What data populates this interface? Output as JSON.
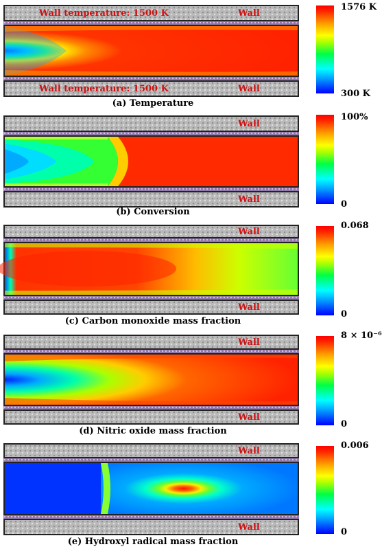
{
  "panels": [
    {
      "id": "temperature",
      "caption": "(a) Temperature",
      "top_wall_label": "Wall temperature: 1500 K",
      "top_wall_right": "Wall",
      "bottom_wall_label": "Wall temperature: 1500 K",
      "bottom_wall_right": "Wall",
      "colorbar_max": "1576 K",
      "colorbar_min": "300 K"
    },
    {
      "id": "conversion",
      "caption": "(b) Conversion",
      "top_wall_right": "Wall",
      "bottom_wall_right": "Wall",
      "colorbar_max": "100%",
      "colorbar_min": "0"
    },
    {
      "id": "carbon-monoxide",
      "caption": "(c) Carbon monoxide mass fraction",
      "top_wall_right": "Wall",
      "bottom_wall_right": "Wall",
      "colorbar_max": "0.068",
      "colorbar_min": "0"
    },
    {
      "id": "nitric-oxide",
      "caption": "(d) Nitric oxide mass fraction",
      "top_wall_right": "Wall",
      "bottom_wall_right": "Wall",
      "colorbar_max": "8 × 10⁻⁶",
      "colorbar_min": "0"
    },
    {
      "id": "hydroxyl",
      "caption": "(e) Hydroxyl radical mass fraction",
      "top_wall_right": "Wall",
      "bottom_wall_right": "Wall",
      "colorbar_max": "0.006",
      "colorbar_min": "0"
    }
  ],
  "colors": {
    "wall_text": "#cc1111",
    "colormap_low": "#0000ff",
    "colormap_mid": "#00ff44",
    "colormap_high": "#ff0000"
  }
}
